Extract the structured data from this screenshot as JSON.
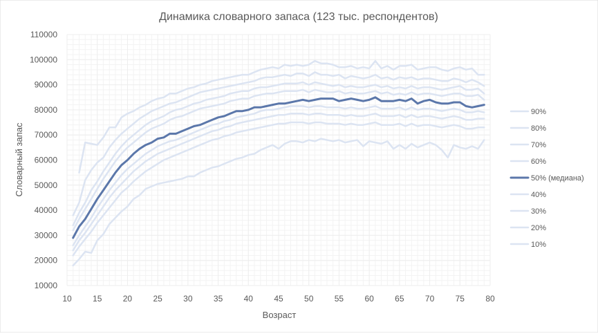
{
  "chart_data": {
    "type": "line",
    "title": "Динамика словарного запаса (123 тыс. респондентов)",
    "xlabel": "Возраст",
    "ylabel": "Словарный запас",
    "xlim": [
      10,
      80
    ],
    "ylim": [
      10000,
      110000
    ],
    "xticks": [
      10,
      15,
      20,
      25,
      30,
      35,
      40,
      45,
      50,
      55,
      60,
      65,
      70,
      75,
      80
    ],
    "yticks": [
      10000,
      20000,
      30000,
      40000,
      50000,
      60000,
      70000,
      80000,
      90000,
      100000,
      110000
    ],
    "grid": true,
    "legend_position": "right",
    "colors": {
      "percentile": "#dce4f2",
      "median": "#5b77aa",
      "grid": "#eeeeee",
      "axis_text": "#595959"
    },
    "x": [
      11,
      12,
      13,
      14,
      15,
      16,
      17,
      18,
      19,
      20,
      21,
      22,
      23,
      24,
      25,
      26,
      27,
      28,
      29,
      30,
      31,
      32,
      33,
      34,
      35,
      36,
      37,
      38,
      39,
      40,
      41,
      42,
      43,
      44,
      45,
      46,
      47,
      48,
      49,
      50,
      51,
      52,
      53,
      54,
      55,
      56,
      57,
      58,
      59,
      60,
      61,
      62,
      63,
      64,
      65,
      66,
      67,
      68,
      69,
      70,
      71,
      72,
      73,
      74,
      75,
      76,
      77,
      78,
      79
    ],
    "series": [
      {
        "name": "90%",
        "highlight": false,
        "values": [
          null,
          55000,
          67000,
          66500,
          66000,
          69000,
          73000,
          73000,
          77000,
          78500,
          79500,
          81000,
          82000,
          83500,
          84500,
          85000,
          86500,
          86500,
          87500,
          88500,
          89000,
          90000,
          90500,
          91500,
          92000,
          92500,
          93000,
          93500,
          94000,
          94000,
          95000,
          96000,
          96500,
          97000,
          96500,
          98000,
          97500,
          98000,
          97500,
          98000,
          99500,
          98500,
          98500,
          98000,
          97000,
          97000,
          97500,
          96500,
          97000,
          96500,
          99500,
          96500,
          97500,
          96000,
          97500,
          97500,
          98000,
          96000,
          96500,
          97000,
          97000,
          96000,
          95500,
          96500,
          97000,
          96000,
          96500,
          94000,
          94000
        ]
      },
      {
        "name": "80%",
        "highlight": false,
        "values": [
          38000,
          43000,
          52000,
          56000,
          59000,
          61000,
          65000,
          68000,
          70500,
          72500,
          74500,
          76500,
          78000,
          79500,
          80500,
          81500,
          82500,
          83000,
          84000,
          85000,
          86000,
          87000,
          87500,
          88000,
          88500,
          89000,
          89500,
          90000,
          90500,
          91000,
          91500,
          92500,
          93000,
          93000,
          93500,
          94000,
          93500,
          94500,
          94500,
          93500,
          95000,
          94000,
          94000,
          93500,
          94000,
          92500,
          93500,
          93000,
          92500,
          93000,
          94000,
          92500,
          93000,
          92000,
          93000,
          92500,
          93000,
          92000,
          92500,
          92500,
          92000,
          91500,
          91500,
          92500,
          92000,
          91000,
          92000,
          91000,
          89500
        ]
      },
      {
        "name": "70%",
        "highlight": false,
        "values": [
          34000,
          39000,
          43000,
          48000,
          51500,
          55500,
          59000,
          62500,
          65500,
          68000,
          70000,
          72000,
          74000,
          75500,
          76500,
          77500,
          79000,
          80000,
          80500,
          81500,
          82500,
          83000,
          84000,
          84500,
          85000,
          85500,
          86500,
          87000,
          87500,
          87500,
          88500,
          89000,
          89000,
          89500,
          90000,
          90500,
          90500,
          90500,
          91000,
          90000,
          91000,
          90500,
          90000,
          89500,
          90000,
          89000,
          89500,
          89000,
          89000,
          89500,
          90000,
          89000,
          89500,
          88500,
          89000,
          88500,
          89500,
          88500,
          89000,
          89000,
          88500,
          88000,
          88500,
          89000,
          89500,
          88000,
          88000,
          88500,
          86500
        ]
      },
      {
        "name": "60%",
        "highlight": false,
        "values": [
          32000,
          36500,
          40500,
          44500,
          48500,
          52500,
          56000,
          59500,
          62500,
          65000,
          67000,
          69000,
          71000,
          72500,
          73500,
          74500,
          76000,
          77000,
          77500,
          78500,
          79500,
          80500,
          81000,
          81500,
          82000,
          82500,
          83500,
          84000,
          84500,
          84500,
          85500,
          86000,
          86500,
          86500,
          87000,
          87500,
          87500,
          87500,
          88000,
          87000,
          88000,
          87500,
          87000,
          87000,
          87500,
          86500,
          87000,
          86500,
          86500,
          87000,
          87500,
          86500,
          87000,
          86000,
          86500,
          86000,
          87000,
          86000,
          86500,
          86500,
          86000,
          85500,
          86000,
          86500,
          86500,
          85500,
          85500,
          86000,
          84000
        ]
      },
      {
        "name": "50% (медиана)",
        "highlight": true,
        "values": [
          29000,
          33500,
          36500,
          40500,
          44500,
          48000,
          51500,
          55000,
          58000,
          60000,
          62500,
          64500,
          66000,
          67000,
          68500,
          69000,
          70500,
          70500,
          71500,
          72500,
          73500,
          74000,
          75000,
          76000,
          77000,
          77500,
          78500,
          79500,
          79500,
          80000,
          81000,
          81000,
          81500,
          82000,
          82500,
          82500,
          83000,
          83500,
          84000,
          83500,
          84000,
          84500,
          84500,
          84500,
          83500,
          84000,
          84500,
          84000,
          83500,
          84000,
          85000,
          83500,
          83500,
          83500,
          84000,
          83500,
          84500,
          82500,
          83500,
          84000,
          83000,
          82500,
          82500,
          83000,
          83000,
          81500,
          81000,
          81500,
          82000
        ]
      },
      {
        "name": "40%",
        "highlight": false,
        "values": [
          26000,
          30000,
          33500,
          37000,
          41000,
          44500,
          48000,
          51000,
          54000,
          56500,
          58500,
          60500,
          62500,
          64000,
          65500,
          66500,
          67500,
          68000,
          69000,
          70000,
          71000,
          72000,
          73000,
          74000,
          74500,
          75500,
          76000,
          77000,
          77500,
          78000,
          78500,
          79500,
          80000,
          80000,
          80500,
          81000,
          81500,
          81500,
          81500,
          81000,
          81500,
          81500,
          81000,
          81000,
          81000,
          80500,
          81000,
          80500,
          80500,
          81000,
          81500,
          80500,
          80500,
          80500,
          81000,
          80000,
          81000,
          80000,
          80500,
          80500,
          80000,
          79500,
          80000,
          80500,
          80000,
          79000,
          79000,
          79500,
          79000
        ]
      },
      {
        "name": "30%",
        "highlight": false,
        "values": [
          24000,
          28000,
          31000,
          34500,
          38000,
          41500,
          45000,
          48000,
          50500,
          53000,
          55500,
          57500,
          59500,
          61000,
          62500,
          63500,
          64500,
          65500,
          66500,
          67500,
          68500,
          69500,
          70500,
          71500,
          72000,
          73000,
          73500,
          74500,
          75000,
          75500,
          76000,
          76500,
          77000,
          77500,
          78000,
          78000,
          78500,
          78500,
          78500,
          78000,
          78500,
          78500,
          78000,
          78000,
          78000,
          77500,
          78000,
          77500,
          77500,
          78000,
          78500,
          77500,
          77500,
          77500,
          78000,
          77000,
          78000,
          77000,
          77500,
          77500,
          77000,
          76500,
          77000,
          77500,
          77000,
          76000,
          76000,
          76500,
          76500
        ]
      },
      {
        "name": "20%",
        "highlight": false,
        "values": [
          22000,
          25500,
          28500,
          31500,
          35000,
          38000,
          41000,
          44000,
          47000,
          49000,
          51500,
          53500,
          55500,
          57000,
          58500,
          60000,
          61000,
          62000,
          63000,
          64000,
          65000,
          66000,
          67000,
          68000,
          68500,
          69500,
          70000,
          71000,
          71500,
          72000,
          72500,
          73000,
          73500,
          74000,
          74500,
          74500,
          75000,
          75000,
          75000,
          74500,
          75000,
          75000,
          74500,
          74500,
          74500,
          74000,
          74500,
          74000,
          74000,
          74500,
          75000,
          74000,
          74000,
          74000,
          74500,
          73500,
          74500,
          73500,
          74000,
          74000,
          73500,
          73000,
          73500,
          74000,
          73500,
          72500,
          72500,
          73000,
          73000
        ]
      },
      {
        "name": "10%",
        "highlight": false,
        "values": [
          18000,
          20500,
          23500,
          23000,
          28000,
          30500,
          34500,
          37000,
          39500,
          41500,
          44500,
          46000,
          48500,
          49500,
          50500,
          51000,
          51500,
          52000,
          52500,
          53500,
          53500,
          55000,
          56000,
          57000,
          57500,
          58500,
          59500,
          60500,
          61000,
          62000,
          62500,
          64000,
          65000,
          66000,
          64500,
          66500,
          67500,
          67500,
          67000,
          68000,
          67500,
          68500,
          68000,
          67500,
          68000,
          67000,
          67500,
          68000,
          65500,
          67500,
          67000,
          66500,
          67500,
          64500,
          66000,
          64500,
          66500,
          65000,
          66000,
          67000,
          66000,
          64000,
          61000,
          66000,
          65000,
          64500,
          65500,
          64500,
          68000
        ]
      }
    ]
  }
}
